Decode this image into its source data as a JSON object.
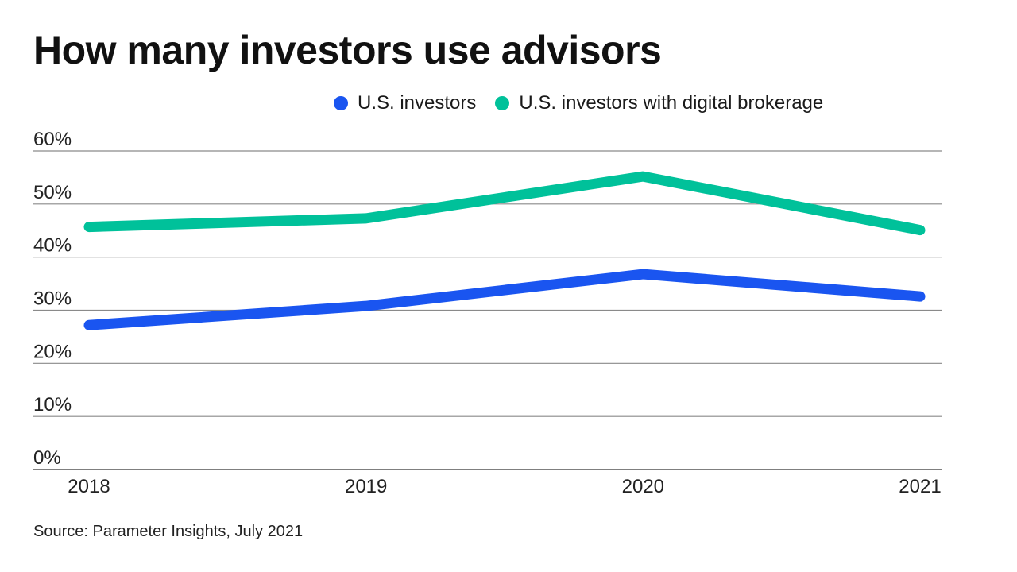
{
  "title": "How many investors use advisors",
  "source": "Source: Parameter Insights, July 2021",
  "colors": {
    "us_investors": "#1a55f0",
    "digital_brokerage": "#00c19a",
    "grid": "#8a8a8a"
  },
  "chart_data": {
    "type": "line",
    "title": "How many investors use advisors",
    "xlabel": "",
    "ylabel": "",
    "categories": [
      "2018",
      "2019",
      "2020",
      "2021"
    ],
    "series": [
      {
        "name": "U.S. investors",
        "color": "#1a55f0",
        "values": [
          27.2,
          30.8,
          36.8,
          32.6
        ]
      },
      {
        "name": "U.S. investors with digital brokerage",
        "color": "#00c19a",
        "values": [
          45.7,
          47.3,
          55.2,
          45.1
        ]
      }
    ],
    "ylim": [
      0,
      60
    ],
    "yticks": [
      0,
      10,
      20,
      30,
      40,
      50,
      60
    ],
    "ytick_labels": [
      "0%",
      "10%",
      "20%",
      "30%",
      "40%",
      "50%",
      "60%"
    ],
    "grid": true,
    "legend_position": "top-right"
  }
}
